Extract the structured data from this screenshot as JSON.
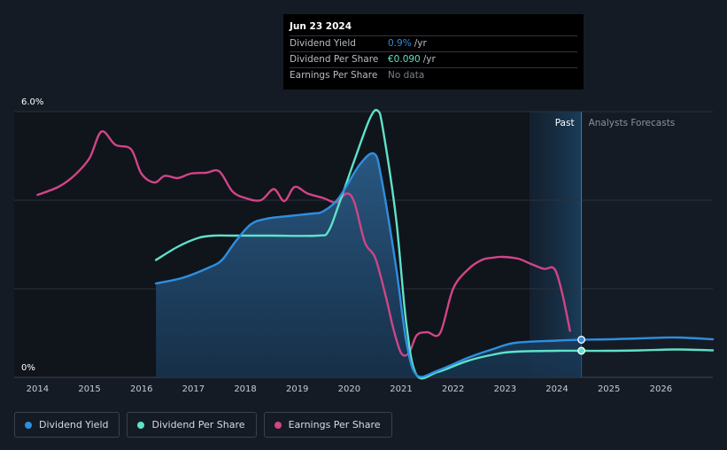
{
  "chart_data": {
    "type": "line",
    "y_axis": {
      "top_label": "6.0%",
      "bottom_label": "0%",
      "ylim": [
        0,
        6.0
      ]
    },
    "x_ticks": [
      "2014",
      "2015",
      "2016",
      "2017",
      "2018",
      "2019",
      "2020",
      "2021",
      "2022",
      "2023",
      "2024",
      "2025",
      "2026"
    ],
    "x_range": [
      2013.55,
      2027.0
    ],
    "past_label": "Past",
    "forecast_label": "Analysts Forecasts",
    "forecast_start": 2024.47,
    "shade_start": 2023.47,
    "series": [
      {
        "name": "Dividend Yield",
        "color": "#2d8fe0",
        "x": [
          2016.28,
          2016.8,
          2017.3,
          2017.55,
          2017.8,
          2018.1,
          2018.4,
          2018.9,
          2019.3,
          2019.5,
          2019.8,
          2020.2,
          2020.48,
          2020.62,
          2020.9,
          2021.1,
          2021.3,
          2021.7,
          2022.3,
          2022.8,
          2023.2,
          2024.0,
          2024.47,
          2025.0,
          2025.6,
          2026.3,
          2027.0
        ],
        "y": [
          2.12,
          2.25,
          2.48,
          2.65,
          3.05,
          3.45,
          3.58,
          3.65,
          3.7,
          3.75,
          4.05,
          4.8,
          5.05,
          4.5,
          2.5,
          0.8,
          0.05,
          0.15,
          0.45,
          0.65,
          0.78,
          0.83,
          0.85,
          0.86,
          0.88,
          0.9,
          0.86
        ]
      },
      {
        "name": "Dividend Per Share",
        "color": "#5ee2c9",
        "x": [
          2016.28,
          2016.7,
          2017.1,
          2017.4,
          2017.8,
          2018.5,
          2019.4,
          2019.6,
          2019.8,
          2020.1,
          2020.4,
          2020.55,
          2020.65,
          2020.9,
          2021.1,
          2021.3,
          2021.7,
          2022.3,
          2022.8,
          2023.2,
          2024.0,
          2024.47,
          2025.0,
          2025.6,
          2026.3,
          2027.0
        ],
        "y": [
          2.65,
          2.95,
          3.15,
          3.2,
          3.2,
          3.2,
          3.2,
          3.3,
          3.9,
          4.9,
          5.85,
          6.02,
          5.6,
          3.6,
          1.2,
          0.05,
          0.12,
          0.38,
          0.52,
          0.58,
          0.6,
          0.6,
          0.6,
          0.61,
          0.63,
          0.61
        ]
      },
      {
        "name": "Earnings Per Share",
        "color": "#d04587",
        "x": [
          2014.0,
          2014.4,
          2014.7,
          2015.0,
          2015.23,
          2015.5,
          2015.8,
          2016.0,
          2016.25,
          2016.45,
          2016.7,
          2016.95,
          2017.25,
          2017.5,
          2017.75,
          2018.0,
          2018.3,
          2018.55,
          2018.75,
          2018.95,
          2019.2,
          2019.5,
          2019.75,
          2019.95,
          2020.1,
          2020.3,
          2020.5,
          2020.7,
          2020.85,
          2021.0,
          2021.15,
          2021.3,
          2021.5,
          2021.75,
          2022.0,
          2022.3,
          2022.55,
          2022.75,
          2022.95,
          2023.25,
          2023.5,
          2023.75,
          2023.95,
          2024.1,
          2024.25
        ],
        "y": [
          4.12,
          4.3,
          4.55,
          4.95,
          5.55,
          5.25,
          5.15,
          4.6,
          4.4,
          4.55,
          4.5,
          4.6,
          4.62,
          4.65,
          4.2,
          4.05,
          4.0,
          4.25,
          3.98,
          4.3,
          4.15,
          4.05,
          3.95,
          4.15,
          3.95,
          3.05,
          2.7,
          1.85,
          1.1,
          0.55,
          0.55,
          0.95,
          1.02,
          1.0,
          2.0,
          2.45,
          2.65,
          2.7,
          2.72,
          2.68,
          2.56,
          2.45,
          2.45,
          1.9,
          1.05
        ]
      }
    ],
    "tooltip": {
      "date": "Jun 23 2024",
      "rows": [
        {
          "label": "Dividend Yield",
          "value": "0.9%",
          "unit": "/yr",
          "color": "#2d8fe0"
        },
        {
          "label": "Dividend Per Share",
          "value": "€0.090",
          "unit": "/yr",
          "color": "#5ee2c9"
        },
        {
          "label": "Earnings Per Share",
          "value": "No data",
          "unit": "",
          "color": "#7a808a"
        }
      ]
    },
    "markers": [
      {
        "series": "Dividend Yield",
        "x": 2024.47,
        "y": 0.85
      },
      {
        "series": "Dividend Per Share",
        "x": 2024.47,
        "y": 0.6
      }
    ]
  },
  "legend": [
    {
      "label": "Dividend Yield",
      "color": "#2d8fe0"
    },
    {
      "label": "Dividend Per Share",
      "color": "#5ee2c9"
    },
    {
      "label": "Earnings Per Share",
      "color": "#d04587"
    }
  ]
}
